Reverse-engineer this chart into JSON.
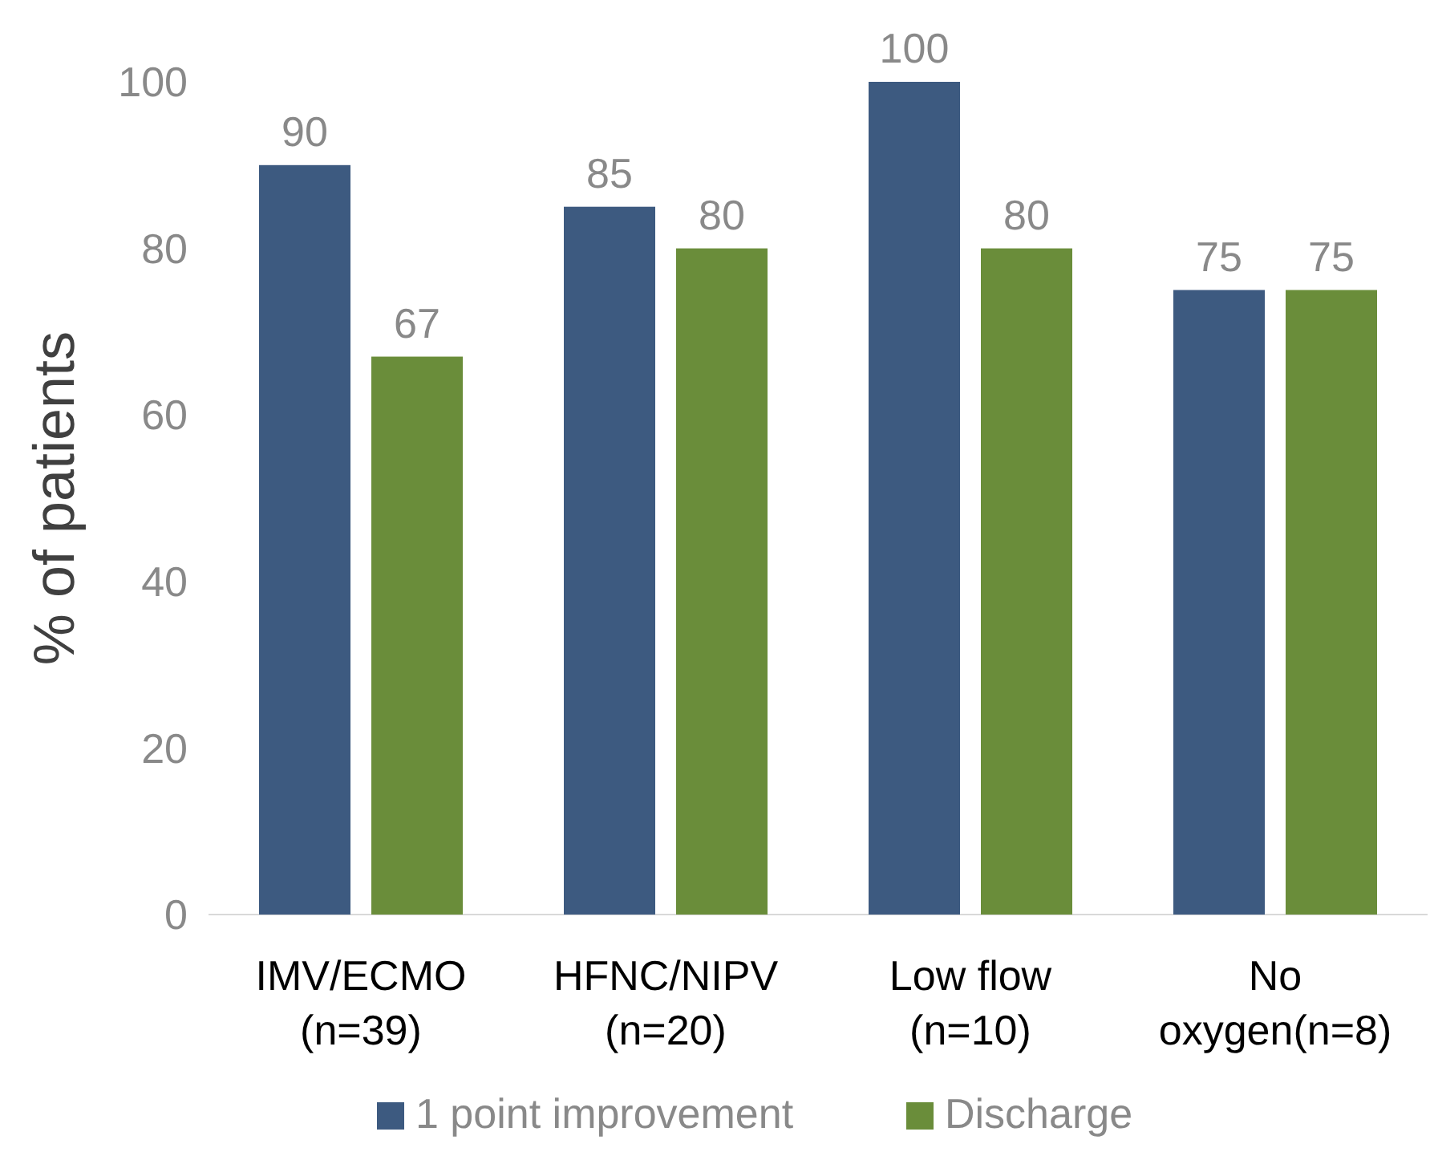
{
  "chart_data": {
    "type": "bar",
    "ylabel": "% of patients",
    "categories": [
      "IMV/ECMO\n(n=39)",
      "HFNC/NIPV\n(n=20)",
      "Low flow\n(n=10)",
      "No\noxygen(n=8)"
    ],
    "series": [
      {
        "name": "1 point improvement",
        "color": "#3d5a80",
        "values": [
          90,
          85,
          100,
          75
        ]
      },
      {
        "name": "Discharge",
        "color": "#6a8d3a",
        "values": [
          67,
          80,
          80,
          75
        ]
      }
    ],
    "ylim": [
      0,
      100
    ],
    "yticks": [
      0,
      20,
      40,
      60,
      80,
      100
    ],
    "data_labels": true,
    "grid": false,
    "legend": "bottom"
  }
}
